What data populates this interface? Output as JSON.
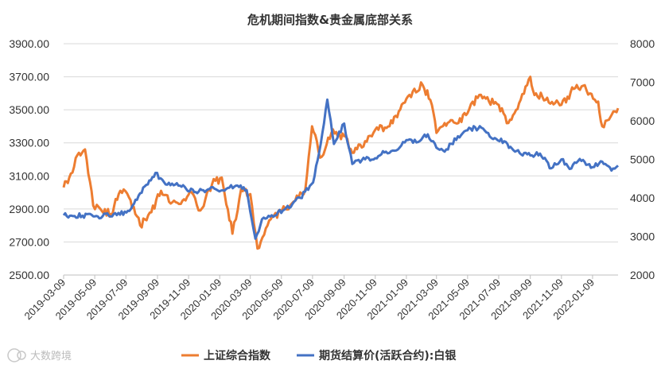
{
  "watermark": "大数跨境",
  "chart_data": {
    "type": "line",
    "title": "危机期间指数&贵金属底部关系",
    "xlabel": "",
    "ylabel": "",
    "legend_position": "bottom",
    "grid": true,
    "colors": {
      "left": "#ED7D31",
      "right": "#4472C4"
    },
    "left_axis": {
      "ylim": [
        2500,
        3900
      ],
      "ticks": [
        "2500.00",
        "2700.00",
        "2900.00",
        "3100.00",
        "3300.00",
        "3500.00",
        "3700.00",
        "3900.00"
      ]
    },
    "right_axis": {
      "ylim": [
        2000,
        8000
      ],
      "ticks": [
        "2000",
        "3000",
        "4000",
        "5000",
        "6000",
        "7000",
        "8000"
      ]
    },
    "x_ticks": [
      "2019-03-09",
      "2019-05-09",
      "2019-07-09",
      "2019-09-09",
      "2019-11-09",
      "2020-01-09",
      "2020-03-09",
      "2020-05-09",
      "2020-07-09",
      "2020-09-09",
      "2020-11-09",
      "2021-01-09",
      "2021-03-09",
      "2021-05-09",
      "2021-07-09",
      "2021-09-09",
      "2021-11-09",
      "2022-01-09"
    ],
    "x_range": [
      "2019-03-09",
      "2022-02-28"
    ],
    "series": [
      {
        "name": "上证综合指数",
        "axis": "left",
        "x": [
          "2019-03-09",
          "2019-03-20",
          "2019-04-08",
          "2019-04-20",
          "2019-05-06",
          "2019-05-20",
          "2019-06-10",
          "2019-06-28",
          "2019-07-15",
          "2019-08-06",
          "2019-08-28",
          "2019-09-16",
          "2019-10-08",
          "2019-10-28",
          "2019-11-15",
          "2019-12-02",
          "2019-12-25",
          "2020-01-13",
          "2020-02-03",
          "2020-02-20",
          "2020-03-09",
          "2020-03-23",
          "2020-04-15",
          "2020-05-10",
          "2020-06-05",
          "2020-06-25",
          "2020-07-08",
          "2020-07-24",
          "2020-08-15",
          "2020-09-09",
          "2020-09-28",
          "2020-10-20",
          "2020-11-09",
          "2020-12-01",
          "2020-12-25",
          "2021-01-15",
          "2021-02-10",
          "2021-02-25",
          "2021-03-09",
          "2021-03-25",
          "2021-04-15",
          "2021-05-09",
          "2021-06-01",
          "2021-06-20",
          "2021-07-09",
          "2021-07-28",
          "2021-08-18",
          "2021-09-09",
          "2021-09-14",
          "2021-10-09",
          "2021-11-09",
          "2021-12-09",
          "2021-12-28",
          "2022-01-20",
          "2022-01-28",
          "2022-02-10",
          "2022-02-28"
        ],
        "values": [
          3030,
          3090,
          3240,
          3260,
          2920,
          2900,
          2870,
          3010,
          2970,
          2800,
          2880,
          3010,
          2940,
          2950,
          3000,
          2890,
          3050,
          3090,
          2750,
          3020,
          2990,
          2660,
          2830,
          2890,
          2950,
          3020,
          3400,
          3210,
          3360,
          3340,
          3240,
          3310,
          3380,
          3390,
          3490,
          3590,
          3650,
          3560,
          3360,
          3420,
          3420,
          3480,
          3590,
          3550,
          3530,
          3420,
          3540,
          3700,
          3620,
          3560,
          3530,
          3650,
          3620,
          3550,
          3400,
          3440,
          3510
        ]
      },
      {
        "name": "期货结算价(活跃合约):白银",
        "axis": "right",
        "x": [
          "2019-03-09",
          "2019-04-15",
          "2019-05-15",
          "2019-06-15",
          "2019-07-10",
          "2019-07-25",
          "2019-08-15",
          "2019-09-05",
          "2019-09-25",
          "2019-10-20",
          "2019-11-20",
          "2019-12-20",
          "2020-01-15",
          "2020-02-10",
          "2020-03-02",
          "2020-03-19",
          "2020-04-01",
          "2020-04-20",
          "2020-05-15",
          "2020-06-15",
          "2020-07-10",
          "2020-07-25",
          "2020-08-07",
          "2020-08-20",
          "2020-09-09",
          "2020-09-25",
          "2020-10-20",
          "2020-11-09",
          "2020-11-30",
          "2020-12-20",
          "2021-01-09",
          "2021-02-01",
          "2021-02-20",
          "2021-03-09",
          "2021-03-25",
          "2021-04-20",
          "2021-05-15",
          "2021-06-05",
          "2021-06-25",
          "2021-07-20",
          "2021-08-10",
          "2021-09-09",
          "2021-09-28",
          "2021-10-20",
          "2021-11-09",
          "2021-11-25",
          "2021-12-15",
          "2022-01-09",
          "2022-01-25",
          "2022-02-15",
          "2022-02-28"
        ],
        "values": [
          3550,
          3540,
          3520,
          3580,
          3620,
          3850,
          4300,
          4650,
          4350,
          4320,
          4150,
          4230,
          4200,
          4320,
          4200,
          2940,
          3450,
          3550,
          3700,
          4000,
          4400,
          5400,
          6550,
          5400,
          5930,
          4880,
          5000,
          5030,
          5200,
          5230,
          5500,
          5450,
          5650,
          5300,
          5200,
          5600,
          5800,
          5820,
          5550,
          5470,
          5200,
          5100,
          5150,
          4770,
          5000,
          4750,
          5010,
          4800,
          4950,
          4710,
          4840
        ]
      }
    ]
  }
}
